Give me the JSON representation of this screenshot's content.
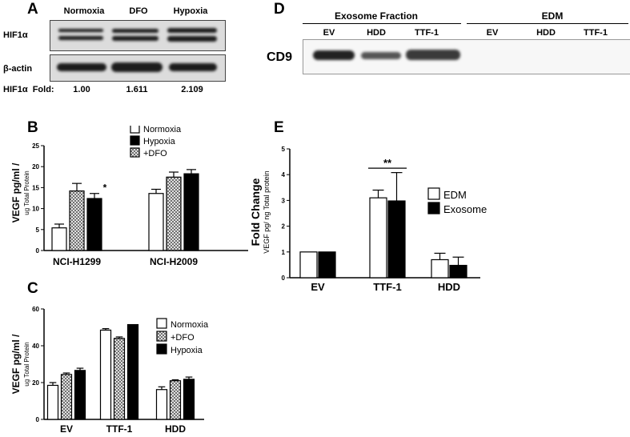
{
  "panels": {
    "A": {
      "label": "A",
      "conditions": [
        "Normoxia",
        "DFO",
        "Hypoxia"
      ],
      "rows": [
        "HIF1α",
        "β-actin"
      ],
      "fold_label": "HIF1α  Fold:",
      "fold_values": [
        "1.00",
        "1.611",
        "2.109"
      ]
    },
    "D": {
      "label": "D",
      "group1": "Exosome Fraction",
      "group2": "EDM",
      "lanes1": [
        "EV",
        "HDD",
        "TTF-1"
      ],
      "lanes2": [
        "EV",
        "HDD",
        "TTF-1"
      ],
      "row_label": "CD9"
    }
  },
  "chart_data": [
    {
      "id": "B",
      "label": "B",
      "type": "bar",
      "categories": [
        "NCI-H1299",
        "NCI-H2009"
      ],
      "series": [
        {
          "name": "Normoxia",
          "values": [
            5.4,
            13.6
          ],
          "errors": [
            0.9,
            1.0
          ]
        },
        {
          "name": "+DFO",
          "values": [
            14.2,
            17.5
          ],
          "errors": [
            1.8,
            1.2
          ]
        },
        {
          "name": "Hypoxia",
          "values": [
            12.4,
            18.3
          ],
          "errors": [
            1.2,
            1.0
          ]
        }
      ],
      "legend_order": [
        "Normoxia",
        "Hypoxia",
        "+DFO"
      ],
      "ylabel": "VEGF pg/ml /",
      "ylabel_sub": "ug Total Protein",
      "ylim": [
        0,
        25
      ],
      "yticks": [
        "0",
        "5",
        "10",
        "15",
        "20",
        "25"
      ],
      "annotations": [
        {
          "text": "*"
        }
      ]
    },
    {
      "id": "C",
      "label": "C",
      "type": "bar",
      "categories": [
        "EV",
        "TTF-1",
        "HDD"
      ],
      "series": [
        {
          "name": "Normoxia",
          "values": [
            18.5,
            48.5,
            16.2
          ],
          "errors": [
            1.5,
            0.8,
            1.5
          ]
        },
        {
          "name": "+DFO",
          "values": [
            24.4,
            44.0,
            21.0
          ],
          "errors": [
            0.8,
            0.8,
            0.5
          ]
        },
        {
          "name": "Hypoxia",
          "values": [
            26.6,
            51.5,
            21.8
          ],
          "errors": [
            1.2,
            0.0,
            1.2
          ]
        }
      ],
      "legend_order": [
        "Normoxia",
        "+DFO",
        "Hypoxia"
      ],
      "ylabel": "VEGF pg/ml /",
      "ylabel_sub": "ug Total Protein",
      "ylim": [
        0,
        60
      ],
      "yticks": [
        "0",
        "20",
        "40",
        "60"
      ]
    },
    {
      "id": "E",
      "label": "E",
      "type": "bar",
      "categories": [
        "EV",
        "TTF-1",
        "HDD"
      ],
      "series": [
        {
          "name": "EDM",
          "values": [
            1.0,
            3.1,
            0.7
          ],
          "errors": [
            0.0,
            0.3,
            0.25
          ]
        },
        {
          "name": "Exosome",
          "values": [
            1.0,
            2.98,
            0.48
          ],
          "errors": [
            0.0,
            1.1,
            0.32
          ]
        }
      ],
      "legend_order": [
        "EDM",
        "Exosome"
      ],
      "ylabel": "Fold Change",
      "ylabel_sub": "VEGF pg/ ng Total protein",
      "ylim": [
        0,
        5
      ],
      "yticks": [
        "0",
        "1",
        "2",
        "3",
        "4",
        "5"
      ],
      "annotations": [
        {
          "text": "**"
        }
      ]
    }
  ]
}
